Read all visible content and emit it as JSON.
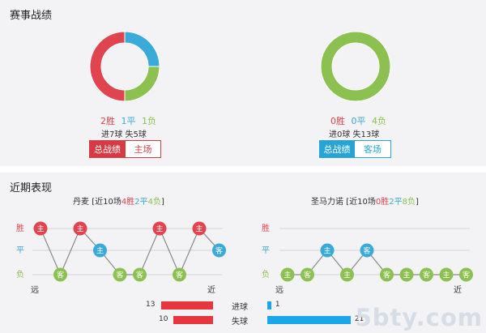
{
  "section1_title": "赛事战绩",
  "section2_title": "近期表现",
  "left_team": {
    "donut": {
      "win": 2,
      "draw": 1,
      "loss": 1
    },
    "record": {
      "win": "2胜",
      "draw": "1平",
      "loss": "1负"
    },
    "goals": "进7球 失5球",
    "buttons": {
      "active": "总战绩",
      "other": "主场"
    }
  },
  "right_team": {
    "donut": {
      "win": 0,
      "draw": 0,
      "loss": 4
    },
    "record": {
      "win": "0胜",
      "draw": "0平",
      "loss": "4负"
    },
    "goals": "进0球 失13球",
    "buttons": {
      "active": "总战绩",
      "other": "客场"
    }
  },
  "form": {
    "left": {
      "team": "丹麦",
      "summary_prefix": "[近10场",
      "win": "4胜",
      "draw": "2平",
      "loss": "4负",
      "summary_suffix": "]",
      "results": [
        {
          "r": "W",
          "v": "主"
        },
        {
          "r": "L",
          "v": "客"
        },
        {
          "r": "W",
          "v": "主"
        },
        {
          "r": "D",
          "v": "主"
        },
        {
          "r": "L",
          "v": "客"
        },
        {
          "r": "L",
          "v": "客"
        },
        {
          "r": "W",
          "v": "主"
        },
        {
          "r": "L",
          "v": "客"
        },
        {
          "r": "W",
          "v": "主"
        },
        {
          "r": "D",
          "v": "客"
        }
      ]
    },
    "right": {
      "team": "圣马力诺",
      "summary_prefix": "[近10场",
      "win": "0胜",
      "draw": "2平",
      "loss": "8负",
      "summary_suffix": "]",
      "results": [
        {
          "r": "L",
          "v": "主"
        },
        {
          "r": "L",
          "v": "客"
        },
        {
          "r": "D",
          "v": "主"
        },
        {
          "r": "L",
          "v": "主"
        },
        {
          "r": "D",
          "v": "客"
        },
        {
          "r": "L",
          "v": "客"
        },
        {
          "r": "L",
          "v": "主"
        },
        {
          "r": "L",
          "v": "客"
        },
        {
          "r": "L",
          "v": "主"
        },
        {
          "r": "L",
          "v": "客"
        }
      ]
    },
    "labels": {
      "win": "胜",
      "draw": "平",
      "loss": "负",
      "far": "远",
      "near": "近"
    }
  },
  "goals_compare": {
    "scored_label": "进球",
    "conceded_label": "失球",
    "left_scored": 13,
    "left_conceded": 10,
    "right_scored": 1,
    "right_conceded": 21
  },
  "watermark": "5bty.com",
  "colors": {
    "win": "#e0454f",
    "draw": "#3aaad8",
    "loss": "#8cc152",
    "red_bar": "#e8363e",
    "blue_bar": "#1aa6e8"
  }
}
